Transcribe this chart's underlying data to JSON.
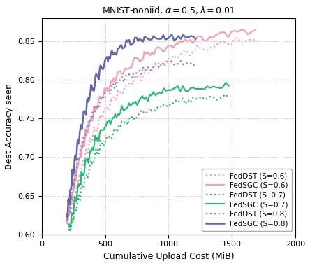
{
  "title": "MNIST-noniid, $\\alpha = 0.5, \\lambda = 0.01$",
  "xlabel": "Cumulative Upload Cost (MiB)",
  "ylabel": "Best Accuracy seen",
  "xlim": [
    0,
    2000
  ],
  "ylim": [
    0.6,
    0.88
  ],
  "yticks": [
    0.6,
    0.65,
    0.7,
    0.75,
    0.8,
    0.85
  ],
  "xticks": [
    0,
    500,
    1000,
    1500,
    2000
  ],
  "series": [
    {
      "label": "FedDST (S=0.6)",
      "color": "#f4a0b5",
      "linestyle": "dotted",
      "linewidth": 1.6,
      "x": [
        195,
        210,
        225,
        240,
        258,
        275,
        295,
        318,
        345,
        375,
        410,
        450,
        495,
        545,
        600,
        660,
        730,
        810,
        900,
        1000,
        1110,
        1230,
        1370,
        1520,
        1680
      ],
      "y": [
        0.614,
        0.623,
        0.632,
        0.641,
        0.653,
        0.665,
        0.678,
        0.693,
        0.708,
        0.722,
        0.736,
        0.75,
        0.763,
        0.774,
        0.784,
        0.793,
        0.803,
        0.812,
        0.82,
        0.828,
        0.835,
        0.841,
        0.847,
        0.851,
        0.855
      ]
    },
    {
      "label": "FedSGC (S=0.6)",
      "color": "#f4a0b5",
      "linestyle": "solid",
      "linewidth": 1.6,
      "x": [
        195,
        210,
        225,
        240,
        258,
        275,
        295,
        318,
        345,
        375,
        410,
        450,
        495,
        545,
        600,
        660,
        730,
        810,
        900,
        1000,
        1110,
        1230,
        1370,
        1520,
        1680
      ],
      "y": [
        0.618,
        0.63,
        0.643,
        0.656,
        0.671,
        0.687,
        0.703,
        0.718,
        0.734,
        0.748,
        0.763,
        0.776,
        0.788,
        0.8,
        0.81,
        0.818,
        0.826,
        0.833,
        0.839,
        0.845,
        0.85,
        0.854,
        0.858,
        0.862,
        0.865
      ]
    },
    {
      "label": "FedDST (S  0.7)",
      "color": "#2dba78",
      "linestyle": "dotted",
      "linewidth": 1.6,
      "x": [
        215,
        235,
        258,
        283,
        312,
        344,
        380,
        420,
        464,
        513,
        568,
        630,
        700,
        778,
        865,
        963,
        1072,
        1193,
        1327,
        1475
      ],
      "y": [
        0.607,
        0.618,
        0.632,
        0.647,
        0.663,
        0.677,
        0.693,
        0.707,
        0.718,
        0.728,
        0.737,
        0.745,
        0.752,
        0.758,
        0.763,
        0.768,
        0.772,
        0.775,
        0.777,
        0.779
      ]
    },
    {
      "label": "FedSGC (S=0.7)",
      "color": "#2dba78",
      "linestyle": "solid",
      "linewidth": 1.6,
      "x": [
        215,
        235,
        258,
        283,
        312,
        344,
        380,
        420,
        464,
        513,
        568,
        630,
        700,
        778,
        865,
        963,
        1072,
        1193,
        1327,
        1475
      ],
      "y": [
        0.613,
        0.628,
        0.645,
        0.662,
        0.679,
        0.695,
        0.71,
        0.724,
        0.736,
        0.746,
        0.755,
        0.763,
        0.77,
        0.776,
        0.781,
        0.785,
        0.788,
        0.79,
        0.792,
        0.793
      ]
    },
    {
      "label": "FedDST (S=0.8)",
      "color": "#8888cc",
      "linestyle": "dotted",
      "linewidth": 1.6,
      "x": [
        195,
        208,
        223,
        240,
        259,
        280,
        303,
        329,
        357,
        388,
        423,
        462,
        505,
        553,
        607,
        667,
        734,
        810,
        895,
        990,
        1096,
        1213
      ],
      "y": [
        0.618,
        0.632,
        0.648,
        0.664,
        0.68,
        0.697,
        0.713,
        0.728,
        0.742,
        0.755,
        0.766,
        0.776,
        0.785,
        0.793,
        0.8,
        0.806,
        0.811,
        0.815,
        0.818,
        0.82,
        0.821,
        0.822
      ]
    },
    {
      "label": "FedSGC (S=0.8)",
      "color": "#6666aa",
      "linestyle": "solid",
      "linewidth": 1.8,
      "x": [
        195,
        208,
        223,
        240,
        259,
        280,
        303,
        329,
        357,
        388,
        423,
        462,
        505,
        553,
        607,
        667,
        734,
        810,
        895,
        990,
        1096,
        1213
      ],
      "y": [
        0.625,
        0.642,
        0.66,
        0.68,
        0.7,
        0.72,
        0.74,
        0.758,
        0.775,
        0.79,
        0.804,
        0.817,
        0.827,
        0.836,
        0.843,
        0.848,
        0.852,
        0.854,
        0.855,
        0.855,
        0.855,
        0.855
      ]
    }
  ],
  "legend_loc": "lower right",
  "title_fontsize": 9,
  "label_fontsize": 9,
  "tick_fontsize": 8,
  "legend_fontsize": 7.5
}
